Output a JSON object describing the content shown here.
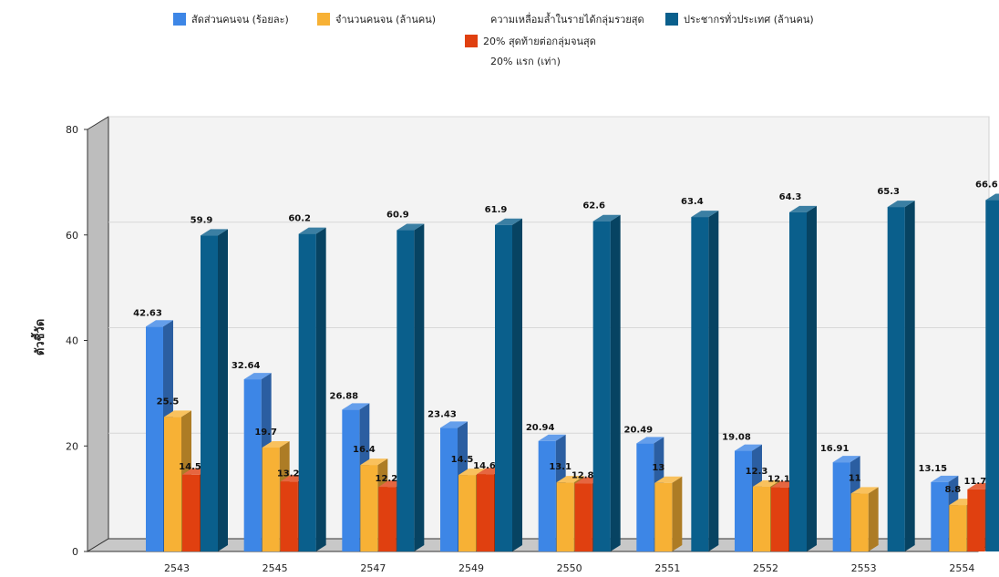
{
  "chart_data": {
    "type": "bar",
    "ylabel": "ตัวชี้วัด",
    "ylim": [
      0,
      80
    ],
    "yticks": [
      0,
      20,
      40,
      60,
      80
    ],
    "categories": [
      "2543",
      "2545",
      "2547",
      "2549",
      "2550",
      "2551",
      "2552",
      "2553",
      "2554"
    ],
    "series": [
      {
        "name": "สัดส่วนคนจน (ร้อยละ)",
        "color": "#3d86e6",
        "values": [
          42.63,
          32.64,
          26.88,
          23.43,
          20.94,
          20.49,
          19.08,
          16.91,
          13.15
        ]
      },
      {
        "name": "จำนวนคนจน (ล้านคน)",
        "color": "#f7b135",
        "values": [
          25.5,
          19.7,
          16.4,
          14.5,
          13.1,
          13,
          12.3,
          11,
          8.8
        ]
      },
      {
        "name": "ความเหลื่อมล้ำในรายได้กลุ่มรวยสุด 20% สุดท้ายต่อกลุ่มจนสุด 20% แรก (เท่า)",
        "color": "#e04010",
        "values": [
          14.55,
          13.26,
          12.24,
          14.65,
          12.87,
          null,
          12.14,
          null,
          11.77
        ]
      },
      {
        "name": "ประชากรทั่วประเทศ (ล้านคน)",
        "color": "#0a5f8c",
        "values": [
          59.9,
          60.2,
          60.9,
          61.9,
          62.6,
          63.4,
          64.3,
          65.3,
          66.6
        ]
      }
    ]
  },
  "legend": {
    "item1": "สัดส่วนคนจน (ร้อยละ)",
    "item2": "จำนวนคนจน (ล้านคน)",
    "item3_line1": "ความเหลื่อมล้ำในรายได้กลุ่มรวยสุด",
    "item3_line2": "20% สุดท้ายต่อกลุ่มจนสุด",
    "item3_line3": "20% แรก (เท่า)",
    "item4": "ประชากรทั่วประเทศ (ล้านคน)"
  }
}
